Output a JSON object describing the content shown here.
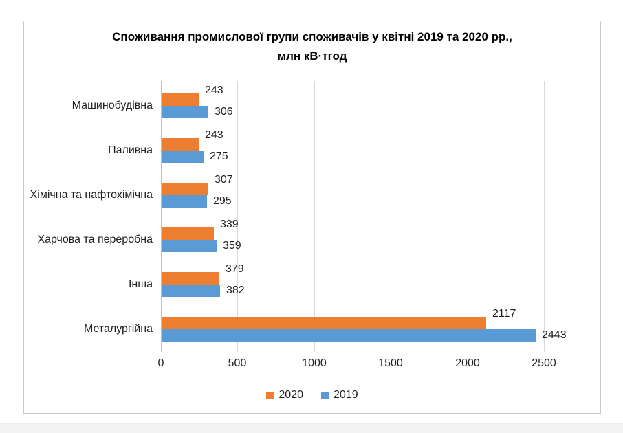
{
  "chart_data": {
    "type": "bar",
    "orientation": "horizontal",
    "title_line1": "Споживання промислової групи споживачів у квітні 2019 та 2020 рр.,",
    "title_line2": "млн кВ·тгод",
    "categories": [
      "Машинобудівна",
      "Паливна",
      "Хімічна та нафтохімічна",
      "Харчова та переробна",
      "Інша",
      "Металургійна"
    ],
    "series": [
      {
        "name": "2020",
        "color": "#ED7D31",
        "values": [
          243,
          243,
          307,
          339,
          379,
          2117
        ]
      },
      {
        "name": "2019",
        "color": "#5B9BD5",
        "values": [
          306,
          275,
          295,
          359,
          382,
          2443
        ]
      }
    ],
    "x_ticks": [
      0,
      500,
      1000,
      1500,
      2000,
      2500
    ],
    "x_tick_labels": [
      "0",
      "500",
      "1000",
      "1500",
      "2000",
      "2500"
    ],
    "xlim": [
      0,
      2800
    ],
    "grid": true,
    "legend_position": "bottom",
    "value_labels_visible": true
  },
  "colors": {
    "gridline": "#d9d9d9",
    "axis_line": "#c1c1c1",
    "frame_border": "#c9c9c9",
    "text": "#1f1f1f",
    "background": "#ffffff"
  }
}
